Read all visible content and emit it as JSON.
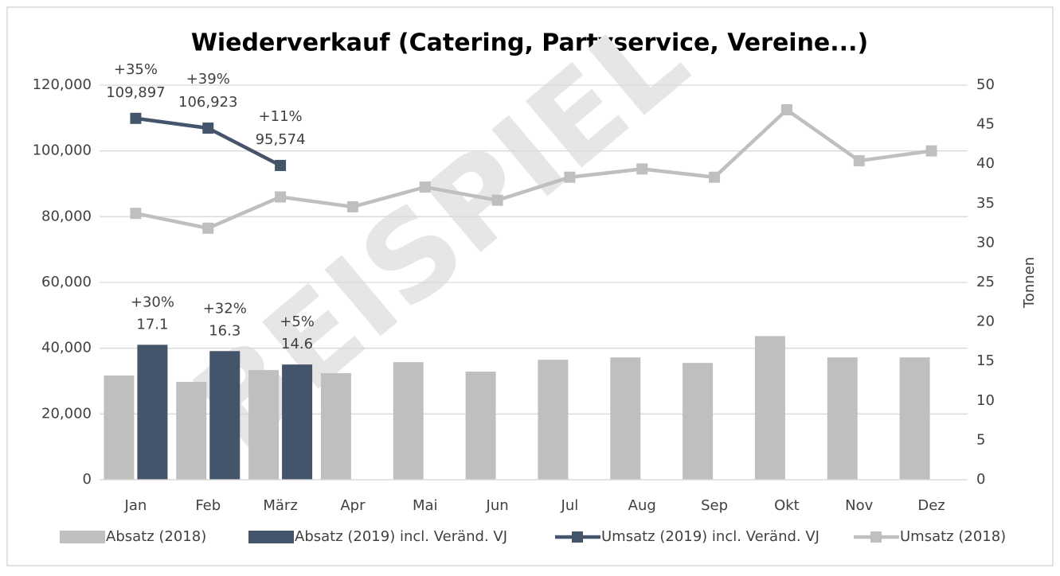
{
  "chart_data": {
    "type": "bar-line",
    "title": "Wiederverkauf (Catering, Partyservice, Vereine...)",
    "watermark": "BEISPIEL",
    "categories": [
      "Jan",
      "Feb",
      "März",
      "Apr",
      "Mai",
      "Jun",
      "Jul",
      "Aug",
      "Sep",
      "Okt",
      "Nov",
      "Dez"
    ],
    "series": [
      {
        "name": "Absatz (2018)",
        "type": "bar",
        "axis": "y2",
        "color": "#bfbfbf",
        "values": [
          13.2,
          12.4,
          13.9,
          13.5,
          14.9,
          13.7,
          15.2,
          15.5,
          14.8,
          18.2,
          15.5,
          15.5
        ]
      },
      {
        "name": "Absatz (2019) incl. Veränd. VJ",
        "type": "bar",
        "axis": "y2",
        "color": "#44546a",
        "values": [
          17.1,
          16.3,
          14.6,
          null,
          null,
          null,
          null,
          null,
          null,
          null,
          null,
          null
        ],
        "changes": [
          "+30%",
          "+32%",
          "+5%",
          null,
          null,
          null,
          null,
          null,
          null,
          null,
          null,
          null
        ]
      },
      {
        "name": "Umsatz (2019) incl. Veränd. VJ",
        "type": "line",
        "axis": "y",
        "color": "#44546a",
        "values": [
          109897,
          106923,
          95574,
          null,
          null,
          null,
          null,
          null,
          null,
          null,
          null,
          null
        ],
        "value_labels": [
          "109,897",
          "106,923",
          "95,574",
          null,
          null,
          null,
          null,
          null,
          null,
          null,
          null,
          null
        ],
        "changes": [
          "+35%",
          "+39%",
          "+11%",
          null,
          null,
          null,
          null,
          null,
          null,
          null,
          null,
          null
        ]
      },
      {
        "name": "Umsatz (2018)",
        "type": "line",
        "axis": "y",
        "color": "#bfbfbf",
        "values": [
          81000,
          76500,
          86000,
          83000,
          89000,
          85000,
          92000,
          94500,
          92000,
          112500,
          97000,
          100000
        ]
      }
    ],
    "ylim": [
      0,
      120000
    ],
    "yticks": [
      0,
      {
        "value": 20000,
        "label": "20,000"
      },
      {
        "value": 40000,
        "label": "40,000"
      },
      {
        "value": 60000,
        "label": "60,000"
      },
      {
        "value": 80000,
        "label": "80,000"
      },
      {
        "value": 100000,
        "label": "100,000"
      },
      {
        "value": 120000,
        "label": "120,000"
      }
    ],
    "y2lim": [
      0,
      50
    ],
    "y2ticks": [
      0,
      5,
      10,
      15,
      20,
      25,
      30,
      35,
      40,
      45,
      50
    ],
    "y2label": "Tonnen",
    "grid": true,
    "legend": "bottom"
  }
}
